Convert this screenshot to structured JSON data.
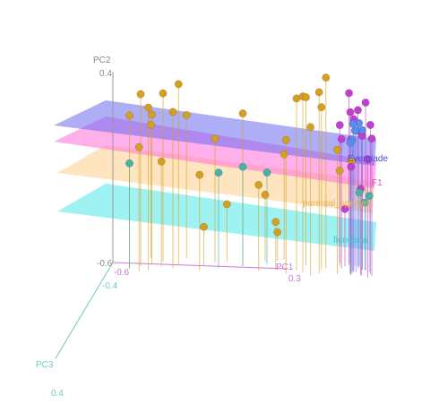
{
  "chart_data": {
    "type": "scatter",
    "dimensions": 3,
    "axes": {
      "pc1": {
        "label": "PC1",
        "tick_labels": [
          "-0.6",
          "0.3"
        ],
        "color": "#c77ad6"
      },
      "pc2": {
        "label": "PC2",
        "tick_labels": [
          "0.4",
          "-0.6"
        ],
        "color": "#888888"
      },
      "pc3": {
        "label": "PC3",
        "tick_labels": [
          "-0.4",
          "0.4"
        ],
        "color": "#6fc9c4"
      }
    },
    "planes": [
      {
        "label": "Everglade",
        "color": "#6b6bf0",
        "level": 4
      },
      {
        "label": "F1",
        "color": "#ff6fd8",
        "level": 3
      },
      {
        "label": "parental_species",
        "color": "#ffcf8a",
        "level": 2
      },
      {
        "label": "floridana",
        "color": "#4fe8e8",
        "level": 1
      }
    ],
    "series": [
      {
        "color": "#d4a020",
        "points": [
          [
            -0.55,
            0.2,
            0.1
          ],
          [
            -0.5,
            0.3,
            0.05
          ],
          [
            -0.48,
            0.25,
            0.12
          ],
          [
            -0.45,
            0.18,
            0.0
          ],
          [
            -0.52,
            0.05,
            0.15
          ],
          [
            -0.4,
            0.28,
            -0.05
          ],
          [
            -0.38,
            0.22,
            0.08
          ],
          [
            -0.44,
            0.1,
            -0.1
          ],
          [
            -0.35,
            0.35,
            0.02
          ],
          [
            -0.42,
            -0.05,
            0.05
          ],
          [
            -0.3,
            0.15,
            -0.12
          ],
          [
            -0.28,
            -0.1,
            0.1
          ],
          [
            -0.2,
            0.05,
            -0.05
          ],
          [
            -0.1,
            0.2,
            0.0
          ],
          [
            -0.05,
            -0.15,
            0.08
          ],
          [
            0.0,
            -0.25,
            -0.1
          ],
          [
            0.05,
            0.1,
            0.12
          ],
          [
            0.1,
            0.3,
            0.05
          ],
          [
            0.12,
            0.32,
            0.08
          ],
          [
            0.15,
            0.28,
            -0.05
          ],
          [
            0.18,
            0.35,
            0.1
          ],
          [
            0.2,
            0.25,
            0.02
          ],
          [
            0.14,
            0.18,
            0.15
          ],
          [
            0.08,
            -0.05,
            -0.15
          ],
          [
            0.02,
            -0.35,
            0.05
          ],
          [
            -0.15,
            -0.3,
            -0.08
          ],
          [
            0.22,
            0.4,
            0.0
          ],
          [
            0.25,
            0.05,
            0.1
          ],
          [
            0.28,
            -0.1,
            -0.05
          ],
          [
            0.3,
            0.0,
            0.12
          ],
          [
            -0.25,
            -0.4,
            0.0
          ],
          [
            0.05,
            -0.45,
            -0.12
          ]
        ]
      },
      {
        "color": "#c040d0",
        "points": [
          [
            0.3,
            0.25,
            0.1
          ],
          [
            0.32,
            0.2,
            0.05
          ],
          [
            0.34,
            0.15,
            0.12
          ],
          [
            0.36,
            0.1,
            0.0
          ],
          [
            0.35,
            0.22,
            -0.05
          ],
          [
            0.38,
            0.18,
            0.08
          ],
          [
            0.33,
            0.05,
            -0.1
          ],
          [
            0.31,
            -0.05,
            0.05
          ],
          [
            0.37,
            0.28,
            0.02
          ],
          [
            0.29,
            0.12,
            -0.12
          ],
          [
            0.34,
            -0.15,
            0.1
          ],
          [
            0.3,
            -0.3,
            -0.05
          ],
          [
            0.36,
            0.02,
            0.15
          ],
          [
            0.32,
            0.3,
            -0.08
          ],
          [
            0.38,
            0.12,
            0.12
          ],
          [
            0.28,
            0.08,
            0.0
          ]
        ]
      },
      {
        "color": "#5a8cf0",
        "points": [
          [
            0.33,
            0.14,
            0.05
          ],
          [
            0.35,
            0.16,
            -0.02
          ],
          [
            0.31,
            0.1,
            0.08
          ],
          [
            0.36,
            0.13,
            0.0
          ],
          [
            0.34,
            0.11,
            -0.06
          ],
          [
            0.32,
            0.17,
            0.03
          ],
          [
            0.3,
            0.09,
            0.1
          ]
        ]
      },
      {
        "color": "#4ab0a8",
        "points": [
          [
            -0.55,
            -0.05,
            0.1
          ],
          [
            -0.2,
            -0.1,
            0.05
          ],
          [
            -0.1,
            -0.08,
            0.0
          ],
          [
            0.0,
            -0.12,
            -0.05
          ],
          [
            0.38,
            -0.2,
            0.05
          ],
          [
            0.37,
            -0.25,
            0.0
          ],
          [
            0.36,
            -0.22,
            -0.08
          ]
        ]
      }
    ]
  }
}
